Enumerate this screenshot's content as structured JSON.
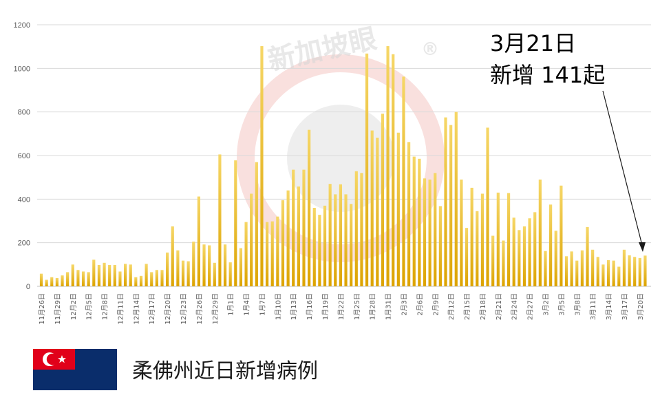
{
  "annotation": {
    "line1": "3月21日",
    "line2": "新增 141起"
  },
  "watermark": {
    "text": "新加坡眼",
    "mark": "®"
  },
  "footer": {
    "title": "柔佛州近日新增病例"
  },
  "flag": {
    "name": "Johor flag",
    "colors": {
      "blue": "#0a2d6b",
      "red": "#e1001a",
      "white": "#ffffff"
    }
  },
  "colors": {
    "bar_top": "#f2c94c",
    "bar_bottom": "#e0a800",
    "accent": "#e8b400"
  },
  "chart_data": {
    "type": "bar",
    "title": "",
    "xlabel": "",
    "ylabel": "",
    "ylim": [
      0,
      1200
    ],
    "yticks": [
      0,
      200,
      400,
      600,
      800,
      1000,
      1200
    ],
    "grid": true,
    "xtick_labels": [
      "11月26日",
      "11月29日",
      "12月2日",
      "12月5日",
      "12月8日",
      "12月11日",
      "12月14日",
      "12月17日",
      "12月20日",
      "12月23日",
      "12月26日",
      "12月29日",
      "1月1日",
      "1月4日",
      "1月7日",
      "1月10日",
      "1月13日",
      "1月16日",
      "1月19日",
      "1月22日",
      "1月25日",
      "1月28日",
      "1月31日",
      "2月3日",
      "2月6日",
      "2月9日",
      "2月12日",
      "2月15日",
      "2月18日",
      "2月21日",
      "2月24日",
      "2月27日",
      "3月2日",
      "3月5日",
      "3月8日",
      "3月11日",
      "3月14日",
      "3月17日",
      "3月20日"
    ],
    "categories": [
      "11月26日",
      "11月27日",
      "11月28日",
      "11月29日",
      "11月30日",
      "12月1日",
      "12月2日",
      "12月3日",
      "12月4日",
      "12月5日",
      "12月6日",
      "12月7日",
      "12月8日",
      "12月9日",
      "12月10日",
      "12月11日",
      "12月12日",
      "12月13日",
      "12月14日",
      "12月15日",
      "12月16日",
      "12月17日",
      "12月18日",
      "12月19日",
      "12月20日",
      "12月21日",
      "12月22日",
      "12月23日",
      "12月24日",
      "12月25日",
      "12月26日",
      "12月27日",
      "12月28日",
      "12月29日",
      "12月30日",
      "12月31日",
      "1月1日",
      "1月2日",
      "1月3日",
      "1月4日",
      "1月5日",
      "1月6日",
      "1月7日",
      "1月8日",
      "1月9日",
      "1月10日",
      "1月11日",
      "1月12日",
      "1月13日",
      "1月14日",
      "1月15日",
      "1月16日",
      "1月17日",
      "1月18日",
      "1月19日",
      "1月20日",
      "1月21日",
      "1月22日",
      "1月23日",
      "1月24日",
      "1月25日",
      "1月26日",
      "1月27日",
      "1月28日",
      "1月29日",
      "1月30日",
      "1月31日",
      "2月1日",
      "2月2日",
      "2月3日",
      "2月4日",
      "2月5日",
      "2月6日",
      "2月7日",
      "2月8日",
      "2月9日",
      "2月10日",
      "2月11日",
      "2月12日",
      "2月13日",
      "2月14日",
      "2月15日",
      "2月16日",
      "2月17日",
      "2月18日",
      "2月19日",
      "2月20日",
      "2月21日",
      "2月22日",
      "2月23日",
      "2月24日",
      "2月25日",
      "2月26日",
      "2月27日",
      "2月28日",
      "3月1日",
      "3月2日",
      "3月3日",
      "3月4日",
      "3月5日",
      "3月6日",
      "3月7日",
      "3月8日",
      "3月9日",
      "3月10日",
      "3月11日",
      "3月12日",
      "3月13日",
      "3月14日",
      "3月15日",
      "3月16日",
      "3月17日",
      "3月18日",
      "3月19日",
      "3月20日",
      "3月21日"
    ],
    "values": [
      58,
      30,
      42,
      38,
      50,
      65,
      100,
      75,
      68,
      65,
      122,
      98,
      108,
      98,
      98,
      68,
      103,
      100,
      42,
      48,
      103,
      65,
      75,
      75,
      155,
      275,
      165,
      118,
      115,
      205,
      412,
      192,
      188,
      108,
      605,
      192,
      110,
      578,
      175,
      295,
      425,
      570,
      1102,
      295,
      298,
      320,
      395,
      440,
      535,
      458,
      535,
      718,
      360,
      328,
      370,
      470,
      422,
      468,
      422,
      378,
      528,
      520,
      1068,
      715,
      682,
      792,
      1102,
      1065,
      705,
      962,
      662,
      595,
      585,
      495,
      490,
      520,
      368,
      775,
      740,
      800,
      490,
      268,
      452,
      345,
      425,
      728,
      232,
      430,
      210,
      428,
      315,
      258,
      275,
      312,
      340,
      490,
      162,
      375,
      255,
      462,
      138,
      160,
      118,
      165,
      272,
      168,
      135,
      100,
      120,
      118,
      90,
      168,
      142,
      135,
      130,
      141
    ]
  }
}
